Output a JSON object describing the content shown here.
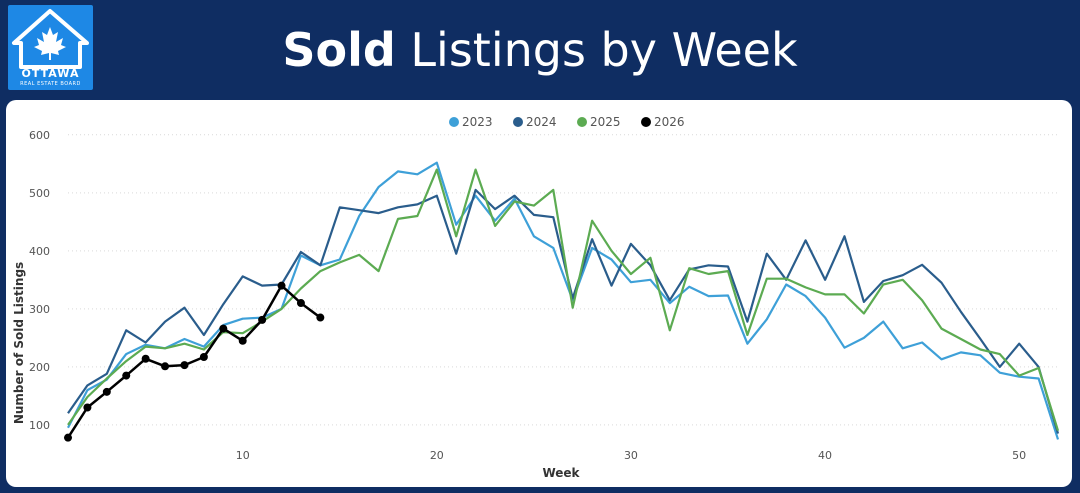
{
  "header": {
    "title_bold": "Sold",
    "title_rest": "Listings by Week",
    "logo_text": "OTTAWA",
    "logo_subtext": "REAL ESTATE BOARD"
  },
  "chart_data": {
    "type": "line",
    "title": "Sold Listings by Week",
    "xlabel": "Week",
    "ylabel": "Number of Sold Listings",
    "xlim": [
      1,
      52
    ],
    "ylim": [
      55,
      610
    ],
    "xticks": [
      10,
      20,
      30,
      40,
      50
    ],
    "yticks": [
      100,
      200,
      300,
      400,
      500,
      600
    ],
    "legend_position": "top-center",
    "grid": "horizontal-dotted",
    "series": [
      {
        "name": "2023",
        "color": "#3ea0d8",
        "markers": false,
        "x": [
          1,
          2,
          3,
          4,
          5,
          6,
          7,
          8,
          9,
          10,
          11,
          12,
          13,
          14,
          15,
          16,
          17,
          18,
          19,
          20,
          21,
          22,
          23,
          24,
          25,
          26,
          27,
          28,
          29,
          30,
          31,
          32,
          33,
          34,
          35,
          36,
          37,
          38,
          39,
          40,
          41,
          42,
          43,
          44,
          45,
          46,
          47,
          48,
          49,
          50,
          51,
          52
        ],
        "values": [
          95,
          160,
          178,
          222,
          238,
          232,
          248,
          235,
          272,
          283,
          285,
          300,
          392,
          375,
          385,
          460,
          510,
          537,
          532,
          552,
          445,
          495,
          452,
          490,
          425,
          405,
          315,
          405,
          385,
          346,
          350,
          310,
          338,
          322,
          323,
          240,
          282,
          342,
          322,
          285,
          233,
          250,
          278,
          232,
          242,
          213,
          225,
          220,
          190,
          183,
          180,
          75
        ]
      },
      {
        "name": "2024",
        "color": "#2a5d8c",
        "markers": false,
        "x": [
          1,
          2,
          3,
          4,
          5,
          6,
          7,
          8,
          9,
          10,
          11,
          12,
          13,
          14,
          15,
          16,
          17,
          18,
          19,
          20,
          21,
          22,
          23,
          24,
          25,
          26,
          27,
          28,
          29,
          30,
          31,
          32,
          33,
          34,
          35,
          36,
          37,
          38,
          39,
          40,
          41,
          42,
          43,
          44,
          45,
          46,
          47,
          48,
          49,
          50,
          51,
          52
        ],
        "values": [
          120,
          168,
          188,
          263,
          242,
          278,
          302,
          255,
          308,
          356,
          340,
          342,
          398,
          375,
          475,
          470,
          465,
          475,
          480,
          495,
          395,
          505,
          472,
          495,
          462,
          458,
          318,
          420,
          340,
          412,
          375,
          315,
          368,
          375,
          373,
          278,
          395,
          350,
          418,
          350,
          425,
          312,
          348,
          358,
          376,
          345,
          295,
          248,
          200,
          240,
          200,
          85
        ]
      },
      {
        "name": "2025",
        "color": "#5cab52",
        "markers": false,
        "x": [
          1,
          2,
          3,
          4,
          5,
          6,
          7,
          8,
          9,
          10,
          11,
          12,
          13,
          14,
          15,
          16,
          17,
          18,
          19,
          20,
          21,
          22,
          23,
          24,
          25,
          26,
          27,
          28,
          29,
          30,
          31,
          32,
          33,
          34,
          35,
          36,
          37,
          38,
          39,
          40,
          41,
          42,
          43,
          44,
          45,
          46,
          47,
          48,
          49,
          50,
          51,
          52
        ],
        "values": [
          100,
          148,
          180,
          210,
          235,
          232,
          240,
          230,
          260,
          258,
          278,
          300,
          335,
          365,
          380,
          393,
          365,
          455,
          460,
          540,
          425,
          540,
          443,
          485,
          478,
          505,
          302,
          452,
          400,
          360,
          388,
          263,
          370,
          360,
          365,
          255,
          352,
          352,
          337,
          325,
          325,
          292,
          342,
          350,
          315,
          266,
          248,
          230,
          222,
          185,
          198,
          90
        ]
      },
      {
        "name": "2026",
        "color": "#000000",
        "markers": true,
        "x": [
          1,
          2,
          3,
          4,
          5,
          6,
          7,
          8,
          9,
          10,
          11,
          12,
          13,
          14
        ],
        "values": [
          78,
          130,
          157,
          185,
          214,
          201,
          203,
          217,
          266,
          245,
          281,
          340,
          310,
          285
        ]
      }
    ]
  }
}
